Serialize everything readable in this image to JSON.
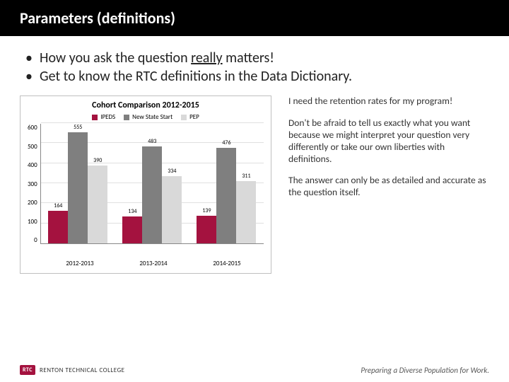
{
  "title": "Parameters (definitions)",
  "bullets": [
    {
      "pre": "How you ask the question ",
      "u": "really",
      "post": " matters!"
    },
    {
      "pre": "Get to know the RTC definitions in the Data Dictionary.",
      "u": "",
      "post": ""
    }
  ],
  "chart": {
    "title": "Cohort Comparison 2012-2015",
    "type": "bar-grouped",
    "legend": [
      {
        "label": "IPEDS",
        "color": "#a4123f"
      },
      {
        "label": "New State Start",
        "color": "#7f7f7f"
      },
      {
        "label": "PEP",
        "color": "#d9d9d9"
      }
    ],
    "y": {
      "min": 0,
      "max": 600,
      "step": 100,
      "ticks": [
        "600",
        "500",
        "400",
        "300",
        "200",
        "100",
        "0"
      ]
    },
    "groups": [
      {
        "x": "2012-2013",
        "bars": [
          {
            "value": 164,
            "color": "#a4123f"
          },
          {
            "value": 555,
            "color": "#7f7f7f"
          },
          {
            "value": 390,
            "color": "#d9d9d9"
          }
        ]
      },
      {
        "x": "2013-2014",
        "bars": [
          {
            "value": 134,
            "color": "#a4123f"
          },
          {
            "value": 483,
            "color": "#7f7f7f"
          },
          {
            "value": 334,
            "color": "#d9d9d9"
          }
        ]
      },
      {
        "x": "2014-2015",
        "bars": [
          {
            "value": 139,
            "color": "#a4123f"
          },
          {
            "value": 476,
            "color": "#7f7f7f"
          },
          {
            "value": 311,
            "color": "#d9d9d9"
          }
        ]
      }
    ],
    "grid_color": "#e0e0e0",
    "axis_color": "#888888",
    "label_fontsize": 9,
    "title_fontsize": 12
  },
  "side": [
    "I need the retention rates for my program!",
    "Don't be afraid to tell us exactly what you want because we might interpret your question very differently or take our own liberties with definitions.",
    "The answer can only be as detailed and accurate as the question itself."
  ],
  "logo": {
    "badge": "RTC",
    "text": "RENTON TECHNICAL COLLEGE"
  },
  "footer": "Preparing a Diverse Population for Work."
}
